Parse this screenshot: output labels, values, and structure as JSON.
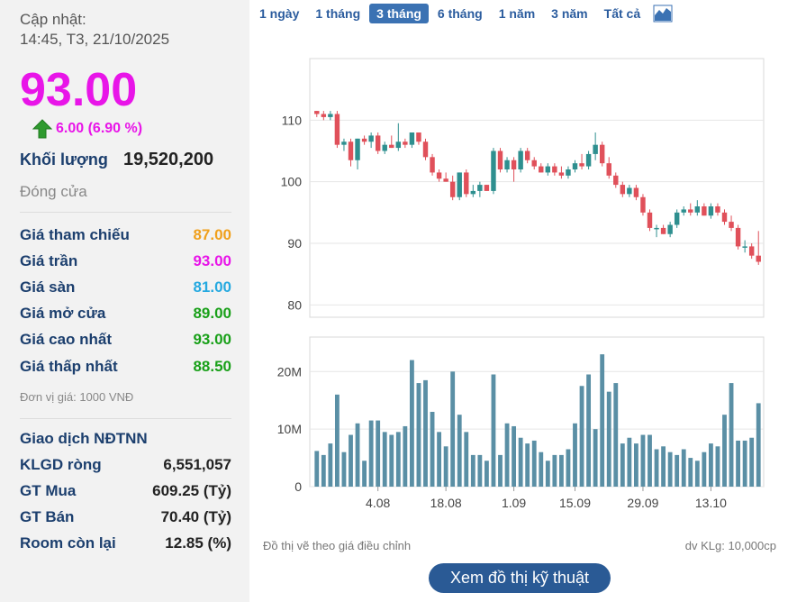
{
  "info": {
    "update_label": "Cập nhật:",
    "update_time": "14:45, T3, 21/10/2025",
    "price": "93.00",
    "change": "6.00 (6.90 %)",
    "volume_label": "Khối lượng",
    "volume_value": "19,520,200",
    "status": "Đóng cửa",
    "stats": [
      {
        "label": "Giá tham chiếu",
        "value": "87.00",
        "color": "#f0a01c"
      },
      {
        "label": "Giá trần",
        "value": "93.00",
        "color": "#e815e8"
      },
      {
        "label": "Giá sàn",
        "value": "81.00",
        "color": "#25a9e0"
      },
      {
        "label": "Giá mở cửa",
        "value": "89.00",
        "color": "#19a019"
      },
      {
        "label": "Giá cao nhất",
        "value": "93.00",
        "color": "#19a019"
      },
      {
        "label": "Giá thấp nhất",
        "value": "88.50",
        "color": "#19a019"
      }
    ],
    "unit_note": "Đơn vị giá: 1000 VNĐ",
    "foreign_title": "Giao dịch NĐTNN",
    "foreign": [
      {
        "label": "KLGD ròng",
        "value": "6,551,057"
      },
      {
        "label": "GT Mua",
        "value": "609.25 (Tỷ)"
      },
      {
        "label": "GT Bán",
        "value": "70.40 (Tỷ)"
      },
      {
        "label": "Room còn lại",
        "value": "12.85 (%)"
      }
    ]
  },
  "tabs": [
    {
      "label": "1 ngày",
      "active": false
    },
    {
      "label": "1 tháng",
      "active": false
    },
    {
      "label": "3 tháng",
      "active": true
    },
    {
      "label": "6 tháng",
      "active": false
    },
    {
      "label": "1 năm",
      "active": false
    },
    {
      "label": "3 năm",
      "active": false
    },
    {
      "label": "Tất cả",
      "active": false
    }
  ],
  "chart_type_icon": "area-chart-icon",
  "chart_data": {
    "type": "candlestick",
    "colors": {
      "up": "#2e8f8f",
      "down": "#e0505a",
      "volume": "#5a8fa5",
      "grid": "#e6e6e6"
    },
    "price_axis": {
      "ticks": [
        "110",
        "100",
        "90",
        "80"
      ],
      "values": [
        110,
        100,
        90,
        80
      ],
      "range": [
        78,
        120
      ]
    },
    "volume_axis": {
      "ticks": [
        "20M",
        "10M",
        "0"
      ],
      "values": [
        20000000,
        10000000,
        0
      ],
      "max": 26000000
    },
    "x_ticks": [
      {
        "label": "4.08",
        "index": 9
      },
      {
        "label": "18.08",
        "index": 19
      },
      {
        "label": "1.09",
        "index": 29
      },
      {
        "label": "15.09",
        "index": 38
      },
      {
        "label": "29.09",
        "index": 48
      },
      {
        "label": "13.10",
        "index": 58
      }
    ],
    "candles": [
      {
        "o": 111.5,
        "h": 111.5,
        "l": 110.5,
        "c": 111.0,
        "v": 6200000
      },
      {
        "o": 111.0,
        "h": 111.5,
        "l": 110.0,
        "c": 110.5,
        "v": 5500000
      },
      {
        "o": 110.5,
        "h": 111.5,
        "l": 110.0,
        "c": 111.0,
        "v": 7500000
      },
      {
        "o": 111.0,
        "h": 111.5,
        "l": 105.5,
        "c": 106.0,
        "v": 16000000
      },
      {
        "o": 106.0,
        "h": 107.0,
        "l": 105.0,
        "c": 106.5,
        "v": 6000000
      },
      {
        "o": 106.5,
        "h": 107.0,
        "l": 102.5,
        "c": 103.5,
        "v": 9000000
      },
      {
        "o": 103.5,
        "h": 107.0,
        "l": 102.0,
        "c": 107.0,
        "v": 11000000
      },
      {
        "o": 107.0,
        "h": 107.5,
        "l": 106.0,
        "c": 106.5,
        "v": 4500000
      },
      {
        "o": 106.5,
        "h": 108.0,
        "l": 105.5,
        "c": 107.5,
        "v": 11500000
      },
      {
        "o": 107.5,
        "h": 108.0,
        "l": 104.5,
        "c": 105.0,
        "v": 11500000
      },
      {
        "o": 105.0,
        "h": 106.5,
        "l": 104.5,
        "c": 106.0,
        "v": 9500000
      },
      {
        "o": 106.0,
        "h": 107.5,
        "l": 105.5,
        "c": 105.5,
        "v": 9000000
      },
      {
        "o": 105.5,
        "h": 109.5,
        "l": 105.0,
        "c": 106.5,
        "v": 9500000
      },
      {
        "o": 106.5,
        "h": 107.0,
        "l": 105.5,
        "c": 106.0,
        "v": 10500000
      },
      {
        "o": 106.0,
        "h": 108.0,
        "l": 105.5,
        "c": 108.0,
        "v": 22000000
      },
      {
        "o": 108.0,
        "h": 108.0,
        "l": 106.0,
        "c": 106.5,
        "v": 18000000
      },
      {
        "o": 106.5,
        "h": 107.0,
        "l": 103.5,
        "c": 104.0,
        "v": 18500000
      },
      {
        "o": 104.0,
        "h": 104.5,
        "l": 101.0,
        "c": 101.5,
        "v": 13000000
      },
      {
        "o": 101.5,
        "h": 102.0,
        "l": 100.0,
        "c": 100.5,
        "v": 9500000
      },
      {
        "o": 100.5,
        "h": 101.5,
        "l": 100.0,
        "c": 100.0,
        "v": 7000000
      },
      {
        "o": 100.0,
        "h": 101.0,
        "l": 97.0,
        "c": 97.5,
        "v": 20000000
      },
      {
        "o": 97.5,
        "h": 101.5,
        "l": 97.0,
        "c": 101.5,
        "v": 12500000
      },
      {
        "o": 101.5,
        "h": 102.0,
        "l": 97.5,
        "c": 98.0,
        "v": 9500000
      },
      {
        "o": 98.0,
        "h": 99.5,
        "l": 97.5,
        "c": 98.5,
        "v": 5500000
      },
      {
        "o": 98.5,
        "h": 100.0,
        "l": 97.5,
        "c": 99.5,
        "v": 5500000
      },
      {
        "o": 99.5,
        "h": 99.5,
        "l": 98.5,
        "c": 98.5,
        "v": 4500000
      },
      {
        "o": 98.5,
        "h": 105.5,
        "l": 98.0,
        "c": 105.0,
        "v": 19500000
      },
      {
        "o": 105.0,
        "h": 105.5,
        "l": 101.5,
        "c": 102.0,
        "v": 5500000
      },
      {
        "o": 102.0,
        "h": 104.0,
        "l": 101.5,
        "c": 103.5,
        "v": 11000000
      },
      {
        "o": 103.5,
        "h": 104.0,
        "l": 100.0,
        "c": 102.0,
        "v": 10500000
      },
      {
        "o": 102.0,
        "h": 105.5,
        "l": 101.5,
        "c": 105.0,
        "v": 8500000
      },
      {
        "o": 105.0,
        "h": 105.5,
        "l": 103.0,
        "c": 103.5,
        "v": 7500000
      },
      {
        "o": 103.5,
        "h": 104.0,
        "l": 102.0,
        "c": 102.5,
        "v": 8000000
      },
      {
        "o": 102.5,
        "h": 103.0,
        "l": 101.5,
        "c": 101.5,
        "v": 6000000
      },
      {
        "o": 101.5,
        "h": 103.0,
        "l": 101.0,
        "c": 102.5,
        "v": 4500000
      },
      {
        "o": 102.5,
        "h": 103.0,
        "l": 101.0,
        "c": 101.5,
        "v": 5500000
      },
      {
        "o": 101.5,
        "h": 102.5,
        "l": 100.5,
        "c": 101.0,
        "v": 5500000
      },
      {
        "o": 101.0,
        "h": 102.5,
        "l": 100.5,
        "c": 102.0,
        "v": 6500000
      },
      {
        "o": 102.0,
        "h": 103.5,
        "l": 101.5,
        "c": 103.0,
        "v": 11000000
      },
      {
        "o": 103.0,
        "h": 104.5,
        "l": 102.0,
        "c": 102.5,
        "v": 17500000
      },
      {
        "o": 102.5,
        "h": 105.0,
        "l": 102.0,
        "c": 104.5,
        "v": 19500000
      },
      {
        "o": 104.5,
        "h": 108.0,
        "l": 103.5,
        "c": 106.0,
        "v": 10000000
      },
      {
        "o": 106.0,
        "h": 106.5,
        "l": 102.5,
        "c": 103.0,
        "v": 23000000
      },
      {
        "o": 103.0,
        "h": 104.0,
        "l": 100.5,
        "c": 101.0,
        "v": 16500000
      },
      {
        "o": 101.0,
        "h": 101.5,
        "l": 99.0,
        "c": 99.5,
        "v": 18000000
      },
      {
        "o": 99.5,
        "h": 100.0,
        "l": 97.5,
        "c": 98.0,
        "v": 7500000
      },
      {
        "o": 98.0,
        "h": 99.5,
        "l": 97.5,
        "c": 99.0,
        "v": 8500000
      },
      {
        "o": 99.0,
        "h": 99.5,
        "l": 97.0,
        "c": 97.5,
        "v": 7500000
      },
      {
        "o": 97.5,
        "h": 98.0,
        "l": 94.5,
        "c": 95.0,
        "v": 9000000
      },
      {
        "o": 95.0,
        "h": 95.5,
        "l": 92.0,
        "c": 92.5,
        "v": 9000000
      },
      {
        "o": 92.5,
        "h": 93.0,
        "l": 91.0,
        "c": 92.5,
        "v": 6500000
      },
      {
        "o": 92.5,
        "h": 93.0,
        "l": 91.5,
        "c": 91.5,
        "v": 7000000
      },
      {
        "o": 91.5,
        "h": 93.5,
        "l": 91.0,
        "c": 93.0,
        "v": 6000000
      },
      {
        "o": 93.0,
        "h": 95.5,
        "l": 92.5,
        "c": 95.0,
        "v": 5500000
      },
      {
        "o": 95.0,
        "h": 96.0,
        "l": 94.5,
        "c": 95.5,
        "v": 6500000
      },
      {
        "o": 95.5,
        "h": 96.5,
        "l": 94.5,
        "c": 95.0,
        "v": 5000000
      },
      {
        "o": 95.0,
        "h": 97.0,
        "l": 94.5,
        "c": 96.0,
        "v": 4500000
      },
      {
        "o": 96.0,
        "h": 96.5,
        "l": 94.5,
        "c": 94.5,
        "v": 6000000
      },
      {
        "o": 94.5,
        "h": 96.5,
        "l": 94.0,
        "c": 96.0,
        "v": 7500000
      },
      {
        "o": 96.0,
        "h": 96.5,
        "l": 94.5,
        "c": 95.0,
        "v": 7000000
      },
      {
        "o": 95.0,
        "h": 95.5,
        "l": 93.0,
        "c": 93.5,
        "v": 12500000
      },
      {
        "o": 93.5,
        "h": 94.5,
        "l": 92.0,
        "c": 92.5,
        "v": 18000000
      },
      {
        "o": 92.5,
        "h": 93.0,
        "l": 89.0,
        "c": 89.5,
        "v": 8000000
      },
      {
        "o": 89.5,
        "h": 90.5,
        "l": 88.5,
        "c": 89.5,
        "v": 8000000
      },
      {
        "o": 89.5,
        "h": 90.0,
        "l": 87.5,
        "c": 88.0,
        "v": 8500000
      },
      {
        "o": 88.0,
        "h": 92.0,
        "l": 86.5,
        "c": 87.0,
        "v": 14500000
      }
    ]
  },
  "footer": {
    "adjusted_note": "Đồ thị vẽ theo giá điều chỉnh",
    "volume_unit": "dv KLg: 10,000cp",
    "tech_button": "Xem đồ thị kỹ thuật"
  }
}
